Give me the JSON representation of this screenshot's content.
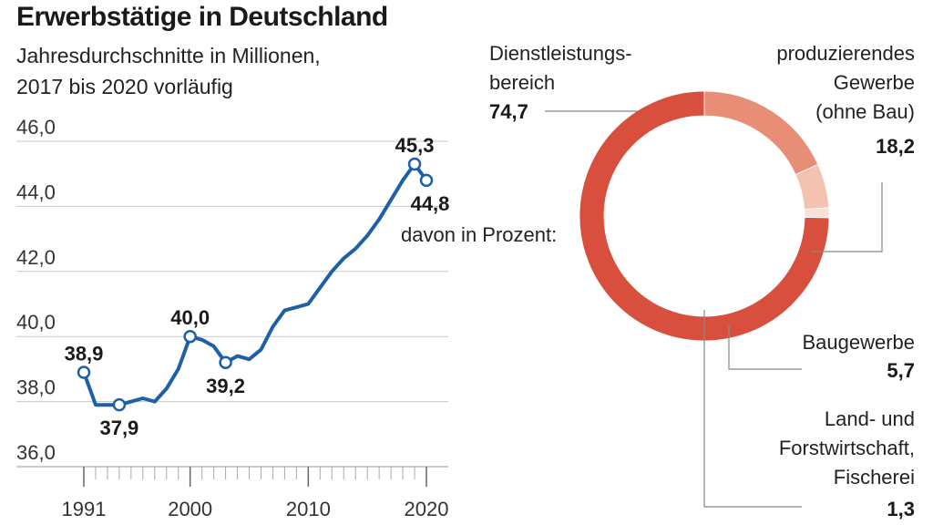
{
  "header": {
    "title": "Erwerbstätige in Deutschland",
    "subtitle_line1": "Jahresdurchschnitte in Millionen,",
    "subtitle_line2": "2017 bis 2020 vorläufig"
  },
  "colors": {
    "line": "#1f5fa8",
    "grid": "#c8c8c8",
    "axis": "#999999",
    "dienstleistung": "#d94f3d",
    "produzierend": "#e88e76",
    "bau": "#f3c2b1",
    "land": "#f9e1d8"
  },
  "chart_data": [
    {
      "type": "line",
      "title": "Erwerbstätige in Deutschland",
      "subtitle": "Jahresdurchschnitte in Millionen, 2017 bis 2020 vorläufig",
      "ylim": [
        36,
        46
      ],
      "yticks": [
        36,
        38,
        40,
        42,
        44,
        46
      ],
      "ytick_labels": [
        "36,0",
        "38,0",
        "40,0",
        "42,0",
        "44,0",
        "46,0"
      ],
      "xlim": [
        1991,
        2020
      ],
      "xticks": [
        1991,
        2000,
        2010,
        2020
      ],
      "xtick_labels": [
        "1991",
        "2000",
        "2010",
        "2020"
      ],
      "grid": true,
      "x": [
        1991,
        1992,
        1993,
        1994,
        1995,
        1996,
        1997,
        1998,
        1999,
        2000,
        2001,
        2002,
        2003,
        2004,
        2005,
        2006,
        2007,
        2008,
        2009,
        2010,
        2011,
        2012,
        2013,
        2014,
        2015,
        2016,
        2017,
        2018,
        2019,
        2020
      ],
      "values": [
        38.9,
        37.9,
        37.9,
        37.9,
        38.0,
        38.1,
        38.0,
        38.4,
        39.0,
        40.0,
        39.9,
        39.7,
        39.2,
        39.4,
        39.3,
        39.6,
        40.3,
        40.8,
        40.9,
        41.0,
        41.5,
        42.0,
        42.4,
        42.7,
        43.1,
        43.6,
        44.2,
        44.8,
        45.3,
        44.8
      ],
      "highlights": [
        {
          "year": 1991,
          "value": 38.9,
          "label": "38,9",
          "pos": "above"
        },
        {
          "year": 1994,
          "value": 37.9,
          "label": "37,9",
          "pos": "below"
        },
        {
          "year": 2000,
          "value": 40.0,
          "label": "40,0",
          "pos": "above"
        },
        {
          "year": 2003,
          "value": 39.2,
          "label": "39,2",
          "pos": "below"
        },
        {
          "year": 2019,
          "value": 45.3,
          "label": "45,3",
          "pos": "above"
        },
        {
          "year": 2020,
          "value": 44.8,
          "label": "44,8",
          "pos": "below"
        }
      ]
    },
    {
      "type": "pie",
      "donut": true,
      "title": "davon in Prozent:",
      "slices": [
        {
          "key": "dienstleistung",
          "label_lines": [
            "Dienstleistungs-",
            "bereich"
          ],
          "value": 74.7,
          "value_label": "74,7"
        },
        {
          "key": "produzierend",
          "label_lines": [
            "produzierendes",
            "Gewerbe",
            "(ohne Bau)"
          ],
          "value": 18.2,
          "value_label": "18,2"
        },
        {
          "key": "bau",
          "label_lines": [
            "Baugewerbe"
          ],
          "value": 5.7,
          "value_label": "5,7"
        },
        {
          "key": "land",
          "label_lines": [
            "Land- und",
            "Forstwirtschaft,",
            "Fischerei"
          ],
          "value": 1.3,
          "value_label": "1,3"
        }
      ]
    }
  ]
}
